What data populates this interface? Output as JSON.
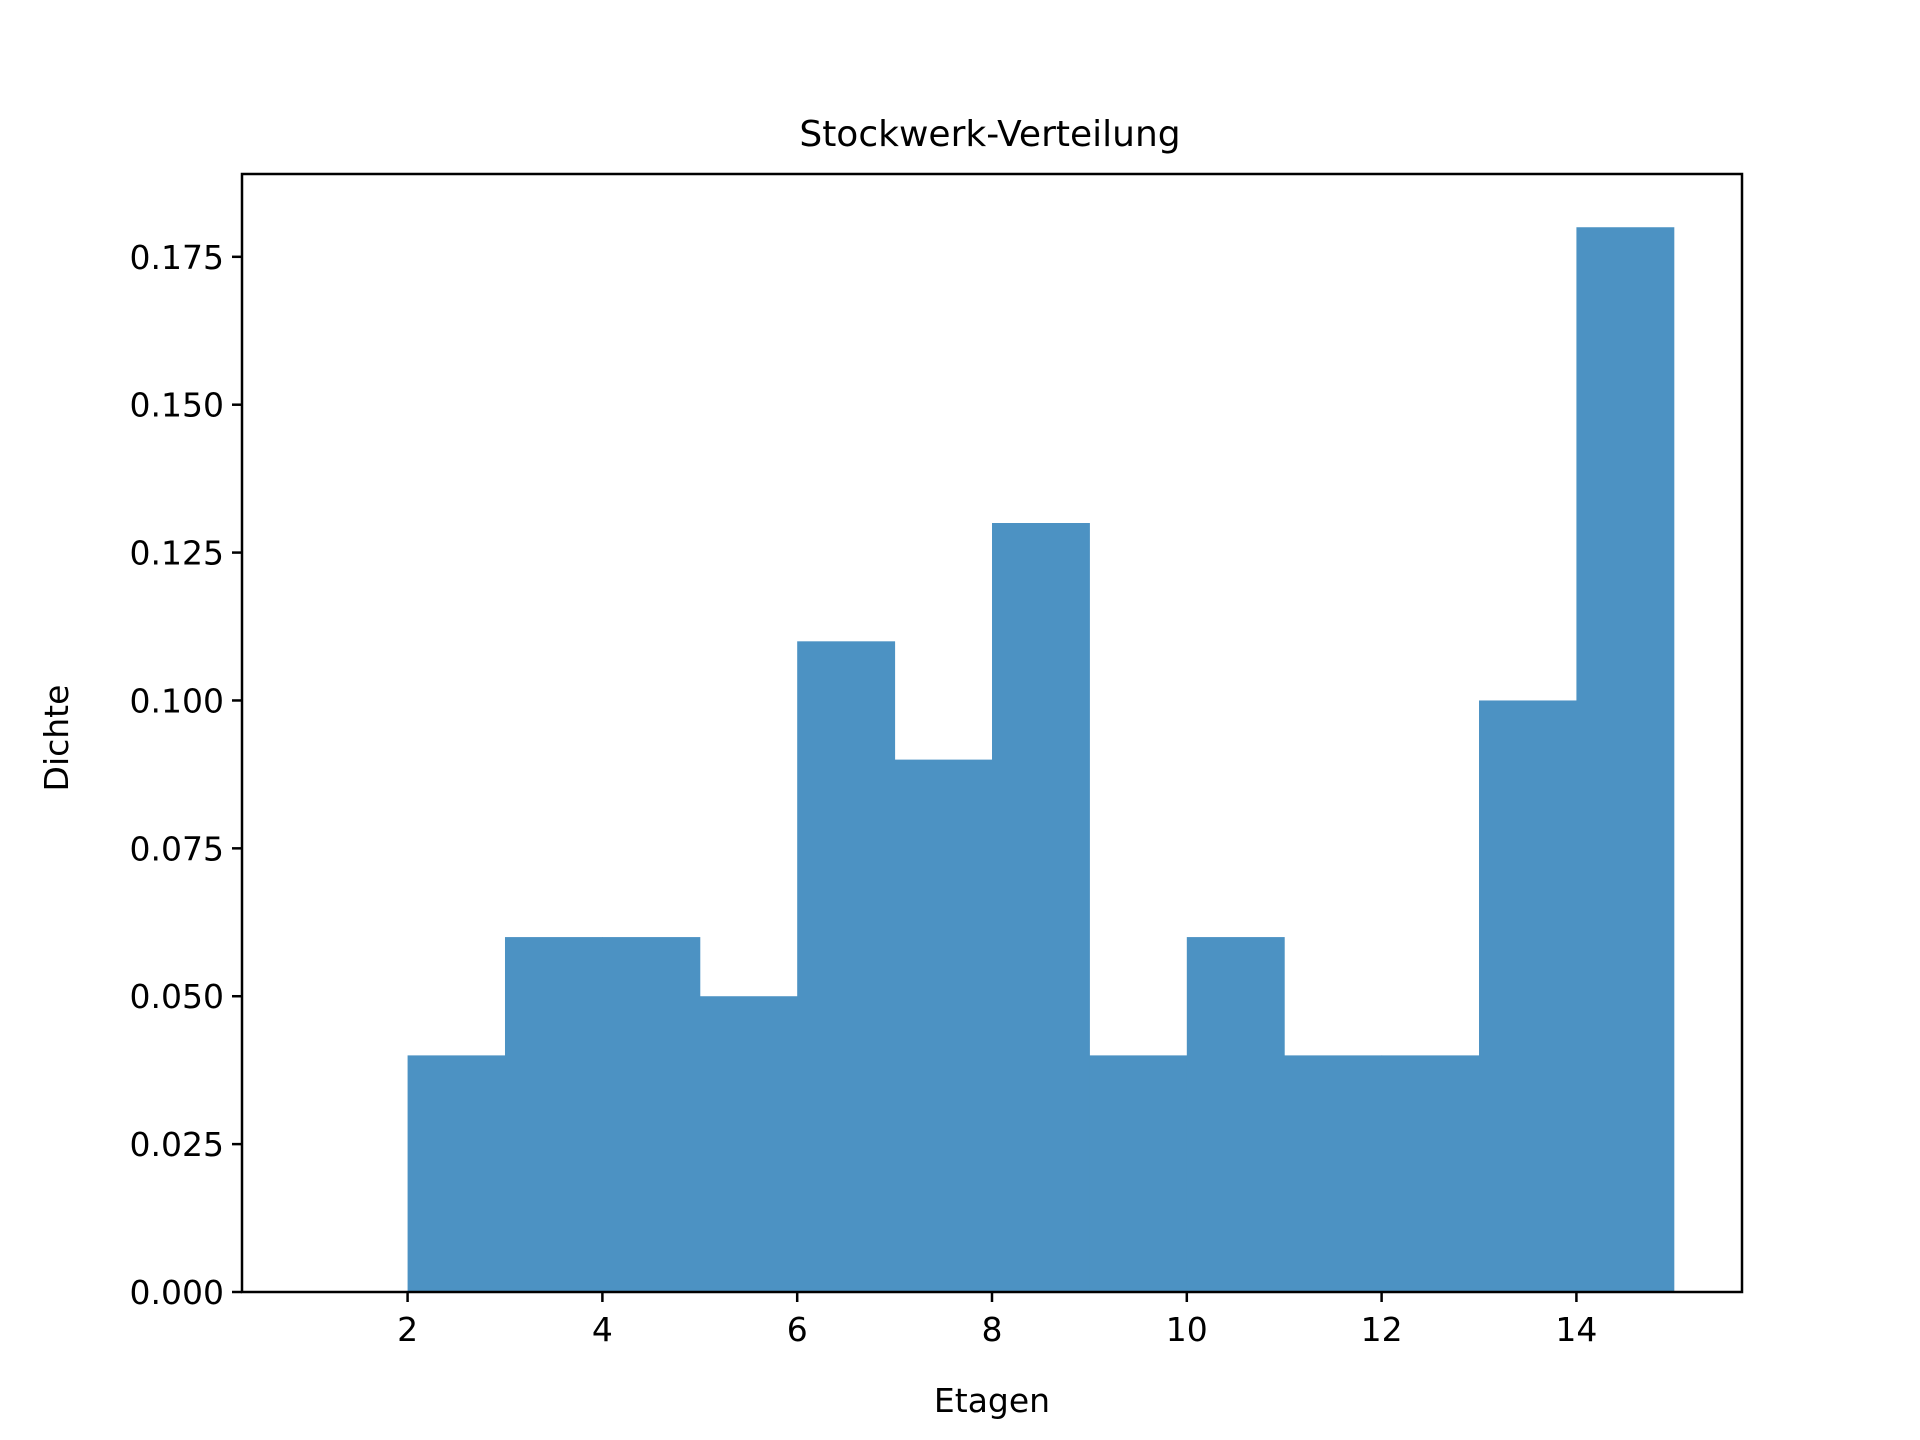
{
  "chart_data": {
    "type": "bar",
    "title": "Stockwerk-Verteilung",
    "xlabel": "Etagen",
    "ylabel": "Dichte",
    "xlim": [
      0.3,
      15.7
    ],
    "ylim": [
      0.0,
      0.189
    ],
    "grid": false,
    "bar_color": "#4c92c3",
    "bins": [
      {
        "x0": 2,
        "x1": 3,
        "value": 0.04
      },
      {
        "x0": 3,
        "x1": 4,
        "value": 0.06
      },
      {
        "x0": 4,
        "x1": 5,
        "value": 0.06
      },
      {
        "x0": 5,
        "x1": 6,
        "value": 0.05
      },
      {
        "x0": 6,
        "x1": 7,
        "value": 0.11
      },
      {
        "x0": 7,
        "x1": 8,
        "value": 0.09
      },
      {
        "x0": 8,
        "x1": 9,
        "value": 0.13
      },
      {
        "x0": 9,
        "x1": 10,
        "value": 0.04
      },
      {
        "x0": 10,
        "x1": 11,
        "value": 0.06
      },
      {
        "x0": 11,
        "x1": 12,
        "value": 0.04
      },
      {
        "x0": 12,
        "x1": 13,
        "value": 0.04
      },
      {
        "x0": 13,
        "x1": 14,
        "value": 0.1
      },
      {
        "x0": 14,
        "x1": 15,
        "value": 0.18
      }
    ],
    "x_ticks": [
      {
        "value": 2,
        "label": "2"
      },
      {
        "value": 4,
        "label": "4"
      },
      {
        "value": 6,
        "label": "6"
      },
      {
        "value": 8,
        "label": "8"
      },
      {
        "value": 10,
        "label": "10"
      },
      {
        "value": 12,
        "label": "12"
      },
      {
        "value": 14,
        "label": "14"
      }
    ],
    "y_ticks": [
      {
        "value": 0.0,
        "label": "0.000"
      },
      {
        "value": 0.025,
        "label": "0.025"
      },
      {
        "value": 0.05,
        "label": "0.050"
      },
      {
        "value": 0.075,
        "label": "0.075"
      },
      {
        "value": 0.1,
        "label": "0.100"
      },
      {
        "value": 0.125,
        "label": "0.125"
      },
      {
        "value": 0.15,
        "label": "0.150"
      },
      {
        "value": 0.175,
        "label": "0.175"
      }
    ]
  }
}
